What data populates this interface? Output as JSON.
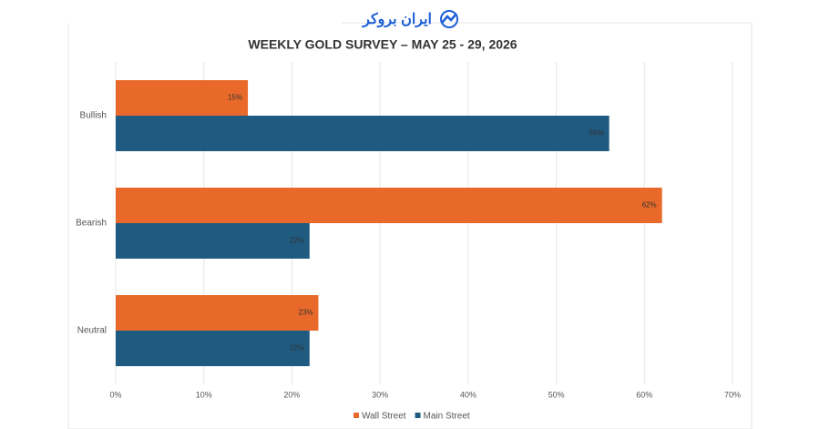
{
  "watermark": "ایران بروکر",
  "chart_data": {
    "type": "hbar",
    "title": "WEEKLY GOLD SURVEY – MAY 25 - 29, 2026",
    "categories": [
      "Bullish",
      "Bearish",
      "Neutral"
    ],
    "series": [
      {
        "name": "Wall Street",
        "color": "#e8692a",
        "values": [
          15,
          62,
          23
        ],
        "value_labels": [
          "15%",
          "62%",
          "23%"
        ]
      },
      {
        "name": "Main Street",
        "color": "#1f5a80",
        "values": [
          56,
          22,
          22
        ],
        "value_labels": [
          "56%",
          "22%",
          "22%"
        ]
      }
    ],
    "xlim": [
      0,
      70
    ],
    "xticks": [
      {
        "value": 0,
        "label": "0%"
      },
      {
        "value": 10,
        "label": "10%"
      },
      {
        "value": 20,
        "label": "20%"
      },
      {
        "value": 30,
        "label": "30%"
      },
      {
        "value": 40,
        "label": "40%"
      },
      {
        "value": 50,
        "label": "50%"
      },
      {
        "value": 60,
        "label": "60%"
      },
      {
        "value": 70,
        "label": "70%"
      }
    ],
    "grid": true,
    "legend": "bottom"
  }
}
